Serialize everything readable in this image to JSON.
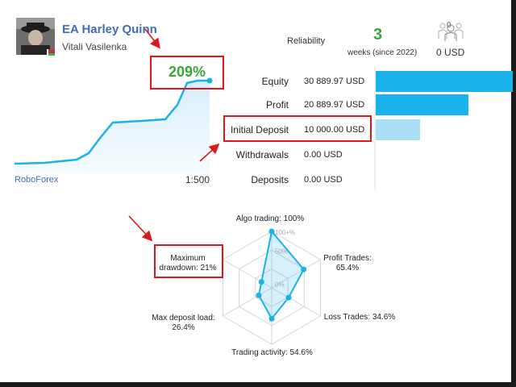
{
  "profile": {
    "name": "EA Harley Quinn",
    "author": "Vitali Vasilenka",
    "avatar_icon": "person-avatar-icon",
    "flag_icon": "belarus-flag-icon"
  },
  "reliability": {
    "label": "Reliability",
    "value": "3",
    "sub": "weeks (since 2022)"
  },
  "subscribers": {
    "count": "0",
    "usd": "0 USD",
    "icon": "subscribers-icon"
  },
  "growth": {
    "value": "209%",
    "broker": "RoboForex",
    "leverage": "1:500"
  },
  "stats": [
    {
      "label": "Equity",
      "value": "30 889.97 USD",
      "amount": 30889.97
    },
    {
      "label": "Profit",
      "value": "20 889.97 USD",
      "amount": 20889.97
    },
    {
      "label": "Initial Deposit",
      "value": "10 000.00 USD",
      "amount": 10000.0
    },
    {
      "label": "Withdrawals",
      "value": "0.00 USD",
      "amount": 0
    },
    {
      "label": "Deposits",
      "value": "0.00 USD",
      "amount": 0
    }
  ],
  "colors": {
    "accent_blue": "#1ab2ea",
    "light_blue": "#a9def5",
    "growth_green": "#39a63a",
    "highlight_red": "#e0161b",
    "name_blue": "#3e6eb4"
  },
  "radar": {
    "labels": {
      "algo": "Algo trading: 100%",
      "profit": "Profit Trades:",
      "profit_val": "65.4%",
      "loss": "Loss Trades: 34.6%",
      "activity": "Trading activity: 54.6%",
      "load": "Max deposit load:",
      "load_val": "26.4%",
      "drawdown": "Maximum",
      "drawdown_val": "drawdown: 21%"
    },
    "scale": {
      "s100": "100+%",
      "s50": "50%",
      "s0": "0%"
    },
    "values": {
      "algo": 100,
      "profit": 65.4,
      "loss": 34.6,
      "activity": 54.6,
      "load": 26.4,
      "drawdown": 21
    }
  }
}
